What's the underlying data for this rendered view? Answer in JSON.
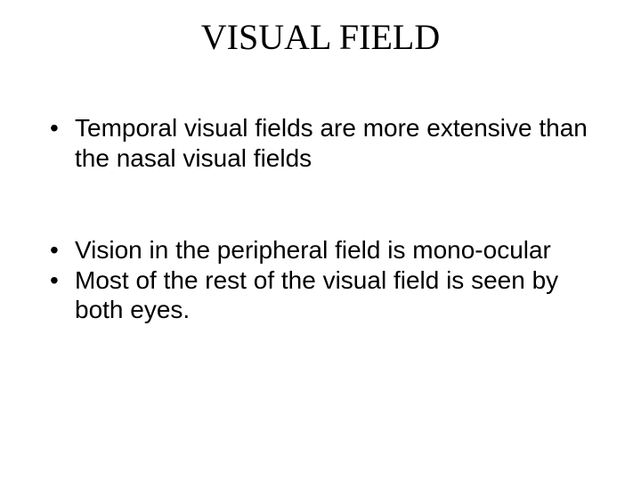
{
  "slide": {
    "title": "VISUAL FIELD",
    "bullets": [
      "Temporal visual fields are more extensive than the nasal visual fields",
      "Vision in the peripheral field is mono-ocular",
      "Most of the rest of the visual field is seen by both eyes."
    ],
    "title_font": "Times New Roman",
    "body_font": "Arial",
    "title_fontsize": 40,
    "body_fontsize": 28,
    "text_color": "#000000",
    "background_color": "#ffffff"
  }
}
